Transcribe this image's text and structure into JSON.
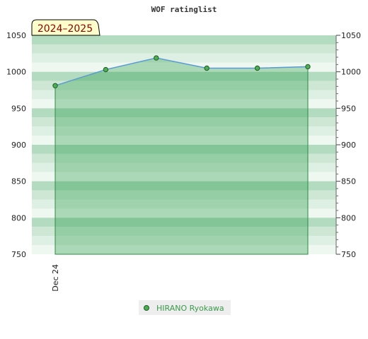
{
  "chart_data": {
    "type": "line",
    "title": "WOF ratinglist",
    "season_label": "2024–2025",
    "x_tick_labels": [
      "Dec 24"
    ],
    "series": [
      {
        "name": "HIRANO Ryokawa",
        "values": [
          981,
          1003,
          1019,
          1005,
          1005,
          1007
        ]
      }
    ],
    "ylim": [
      750,
      1050
    ],
    "y_ticks": [
      750,
      800,
      850,
      900,
      950,
      1000,
      1050
    ],
    "grid": true,
    "legend_position": "bottom-center"
  },
  "colors": {
    "line": "#5b9bd5",
    "marker": "#4caf50",
    "area_fill": "#2e9e4a",
    "band_dark": "#b3dbc0",
    "band_mid": "#cde7d4",
    "band_light": "#deefe3",
    "band_pale": "#eef7f0",
    "season_bg": "#ffffcc",
    "legend_bg": "#eeeeee"
  }
}
